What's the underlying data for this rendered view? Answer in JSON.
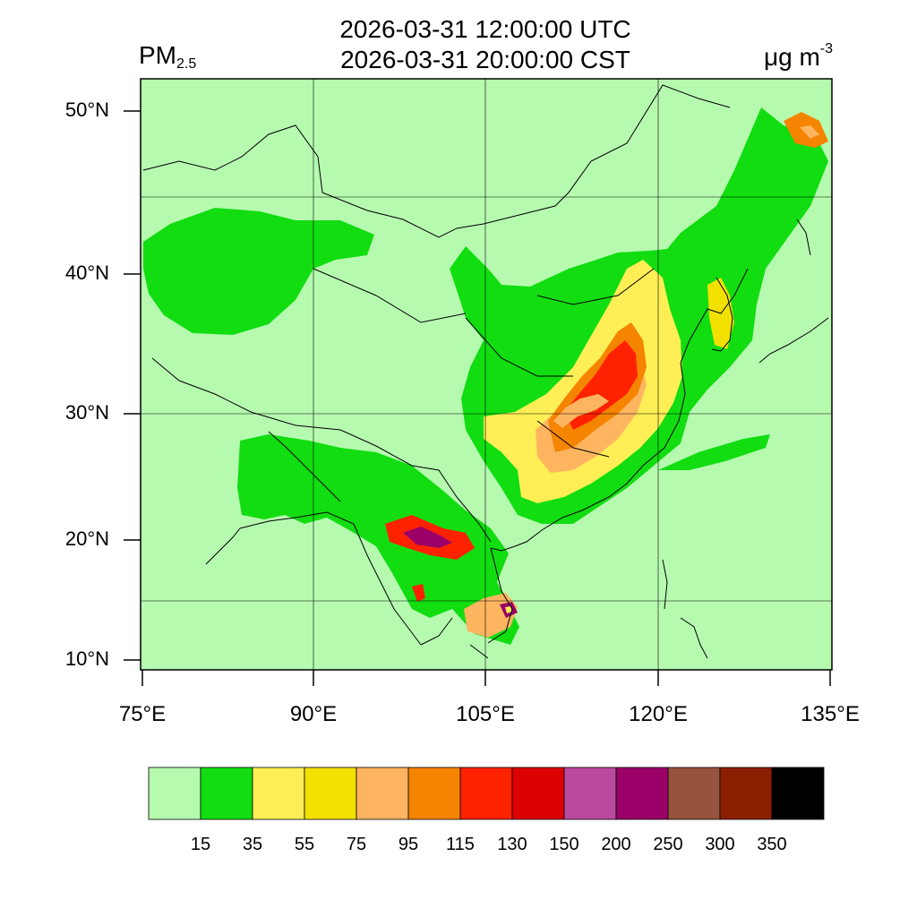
{
  "header": {
    "time_utc": "2026-03-31 12:00:00 UTC",
    "time_local": "2026-03-31 20:00:00 CST",
    "variable_main": "PM",
    "variable_sub": "2.5",
    "unit_main": "μg m",
    "unit_sup": "-3"
  },
  "axes": {
    "lat_labels": [
      "50°N",
      "40°N",
      "30°N",
      "20°N",
      "10°N"
    ],
    "lon_labels": [
      "75°E",
      "90°E",
      "105°E",
      "120°E",
      "135°E"
    ]
  },
  "colorbar": {
    "labels": [
      "15",
      "35",
      "55",
      "75",
      "95",
      "115",
      "130",
      "150",
      "200",
      "250",
      "300",
      "350"
    ],
    "colors": [
      "#b6fab0",
      "#11dd11",
      "#ffee55",
      "#f2e000",
      "#ffb55f",
      "#f58400",
      "#ff2200",
      "#dd0000",
      "#b94a9e",
      "#9a0068",
      "#98533f",
      "#8b2000",
      "#000000"
    ]
  },
  "map": {
    "background_color": "#b6fab0",
    "regions": [
      {
        "level": 1,
        "label": "Tarim Basin green"
      },
      {
        "level": 1,
        "label": "South/Southeast Asia green"
      },
      {
        "level": 1,
        "label": "Eastern China green"
      },
      {
        "level": 1,
        "label": "Northeast green"
      },
      {
        "level": 2,
        "label": "East China yellow"
      },
      {
        "level": 3,
        "label": "Central plain"
      },
      {
        "level": 4,
        "label": "Core light orange"
      },
      {
        "level": 5,
        "label": "Core orange"
      },
      {
        "level": 6,
        "label": "Core red"
      },
      {
        "level": 4,
        "label": "Myanmar/Laos"
      },
      {
        "level": 5,
        "label": "Myanmar core"
      },
      {
        "level": 6,
        "label": "Thailand hotspot"
      },
      {
        "level": 9,
        "label": "Thailand purple"
      },
      {
        "level": 4,
        "label": "Cambodia"
      },
      {
        "level": 6,
        "label": "Cambodia red"
      },
      {
        "level": 9,
        "label": "Cambodia purple"
      },
      {
        "level": 4,
        "label": "Far East hotspot"
      },
      {
        "level": 6,
        "label": "Far East red"
      },
      {
        "level": 2,
        "label": "Korea yellow"
      }
    ]
  }
}
